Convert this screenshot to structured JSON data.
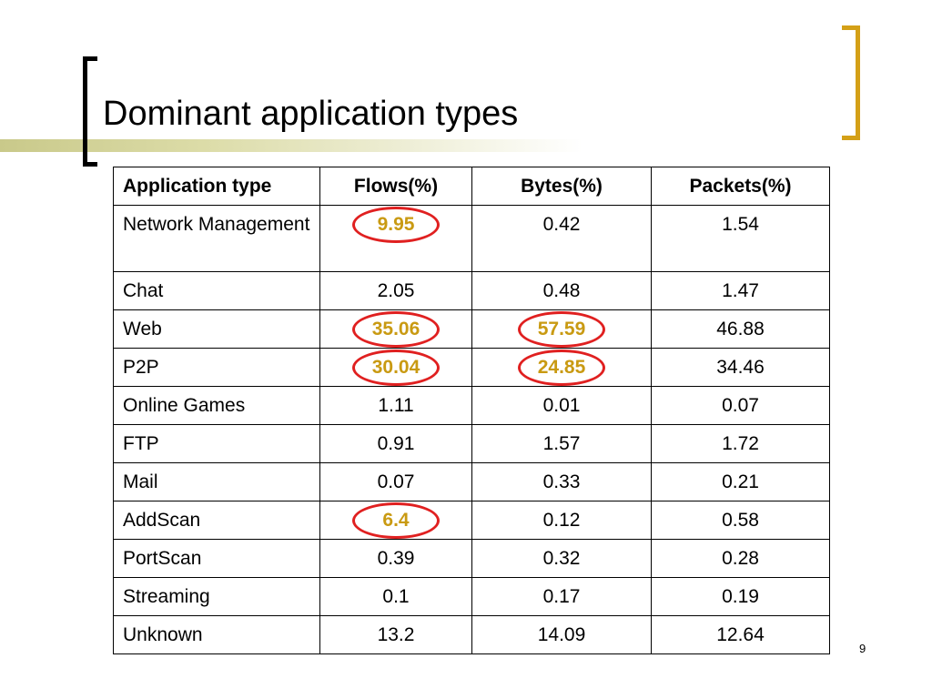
{
  "slide": {
    "title": "Dominant application types",
    "page_number": "9"
  },
  "colors": {
    "highlight_text": "#c99a12",
    "highlight_ring": "#e02020",
    "right_bracket": "#d4a017",
    "accent_bar": "#c9c98a"
  },
  "table": {
    "headers": [
      "Application type",
      "Flows(%)",
      "Bytes(%)",
      "Packets(%)"
    ],
    "rows": [
      [
        "Network Management",
        "9.95",
        "0.42",
        "1.54"
      ],
      [
        "Chat",
        "2.05",
        "0.48",
        "1.47"
      ],
      [
        "Web",
        "35.06",
        "57.59",
        "46.88"
      ],
      [
        "P2P",
        "30.04",
        "24.85",
        "34.46"
      ],
      [
        "Online Games",
        "1.11",
        "0.01",
        "0.07"
      ],
      [
        "FTP",
        "0.91",
        "1.57",
        "1.72"
      ],
      [
        "Mail",
        "0.07",
        "0.33",
        "0.21"
      ],
      [
        "AddScan",
        "6.4",
        "0.12",
        "0.58"
      ],
      [
        "PortScan",
        "0.39",
        "0.32",
        "0.28"
      ],
      [
        "Streaming",
        "0.1",
        "0.17",
        "0.19"
      ],
      [
        "Unknown",
        "13.2",
        "14.09",
        "12.64"
      ]
    ]
  }
}
